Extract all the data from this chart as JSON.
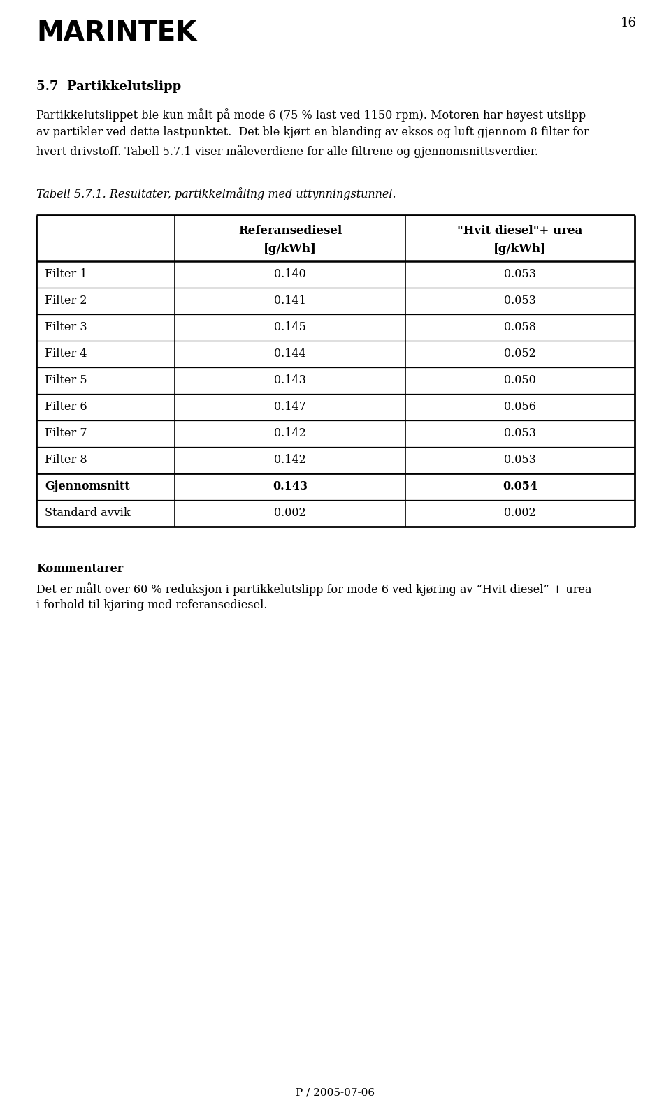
{
  "page_number": "16",
  "header_logo_text": "MARINTEK",
  "section_title": "5.7  Partikkelutslipp",
  "section_body_lines": [
    "Partikkelutslippet ble kun målt på mode 6 (75 % last ved 1150 rpm). Motoren har høyest utslipp",
    "av partikler ved dette lastpunktet.  Det ble kjørt en blanding av eksos og luft gjennom 8 filter for",
    "hvert drivstoff. Tabell 5.7.1 viser måleverdiene for alle filtrene og gjennomsnittsverdier."
  ],
  "table_caption": "Tabell 5.7.1. Resultater, partikkelmåling med uttynningstunnel.",
  "col_header_1": "Referansediesel",
  "col_header_1b": "[g/kWh]",
  "col_header_2": "\"Hvit diesel\"+ urea",
  "col_header_2b": "[g/kWh]",
  "rows": [
    {
      "label": "Filter 1",
      "val1": "0.140",
      "val2": "0.053",
      "bold": false
    },
    {
      "label": "Filter 2",
      "val1": "0.141",
      "val2": "0.053",
      "bold": false
    },
    {
      "label": "Filter 3",
      "val1": "0.145",
      "val2": "0.058",
      "bold": false
    },
    {
      "label": "Filter 4",
      "val1": "0.144",
      "val2": "0.052",
      "bold": false
    },
    {
      "label": "Filter 5",
      "val1": "0.143",
      "val2": "0.050",
      "bold": false
    },
    {
      "label": "Filter 6",
      "val1": "0.147",
      "val2": "0.056",
      "bold": false
    },
    {
      "label": "Filter 7",
      "val1": "0.142",
      "val2": "0.053",
      "bold": false
    },
    {
      "label": "Filter 8",
      "val1": "0.142",
      "val2": "0.053",
      "bold": false
    },
    {
      "label": "Gjennomsnitt",
      "val1": "0.143",
      "val2": "0.054",
      "bold": true
    },
    {
      "label": "Standard avvik",
      "val1": "0.002",
      "val2": "0.002",
      "bold": false
    }
  ],
  "comments_title": "Kommentarer",
  "comments_body_lines": [
    "Det er målt over 60 % reduksjon i partikkelutslipp for mode 6 ved kjøring av “Hvit diesel” + urea",
    "i forhold til kjøring med referansediesel."
  ],
  "footer_text": "P / 2005-07-06",
  "background_color": "#ffffff",
  "text_color": "#000000"
}
